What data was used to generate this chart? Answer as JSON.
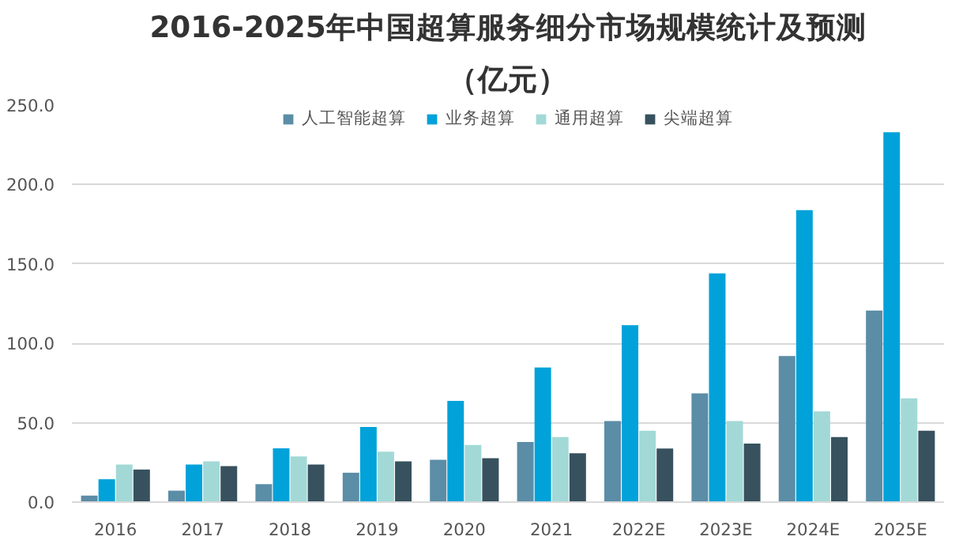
{
  "chart_data": {
    "type": "bar",
    "title": "2016-2025年中国超算服务细分市场规模统计及预测",
    "subtitle": "（亿元）",
    "categories": [
      "2016",
      "2017",
      "2018",
      "2019",
      "2020",
      "2021",
      "2022E",
      "2023E",
      "2024E",
      "2025E"
    ],
    "series": [
      {
        "name": "人工智能超算",
        "color": "#5b8da6",
        "values": [
          4.1,
          7.2,
          11.3,
          18.5,
          26.7,
          37.8,
          51.1,
          68.5,
          92.0,
          120.6
        ]
      },
      {
        "name": "业务超算",
        "color": "#00a2d9",
        "values": [
          14.4,
          23.6,
          33.9,
          47.3,
          63.7,
          84.8,
          111.4,
          144.1,
          183.9,
          233.0
        ]
      },
      {
        "name": "通用超算",
        "color": "#a2d9d6",
        "values": [
          23.6,
          25.7,
          28.8,
          31.8,
          36.0,
          40.9,
          45.0,
          51.1,
          57.2,
          65.4
        ]
      },
      {
        "name": "尖端超算",
        "color": "#37515e",
        "values": [
          20.5,
          22.6,
          23.6,
          25.7,
          27.7,
          30.7,
          33.7,
          36.8,
          40.9,
          45.0
        ]
      }
    ],
    "ylim": [
      0,
      250
    ],
    "yticks": [
      {
        "value": 0,
        "label": "0.0"
      },
      {
        "value": 50,
        "label": "50.0"
      },
      {
        "value": 100,
        "label": "100.0"
      },
      {
        "value": 150,
        "label": "150.0"
      },
      {
        "value": 200,
        "label": "200.0"
      },
      {
        "value": 250,
        "label": "250.0"
      }
    ],
    "grid": "y",
    "legend": "top"
  }
}
